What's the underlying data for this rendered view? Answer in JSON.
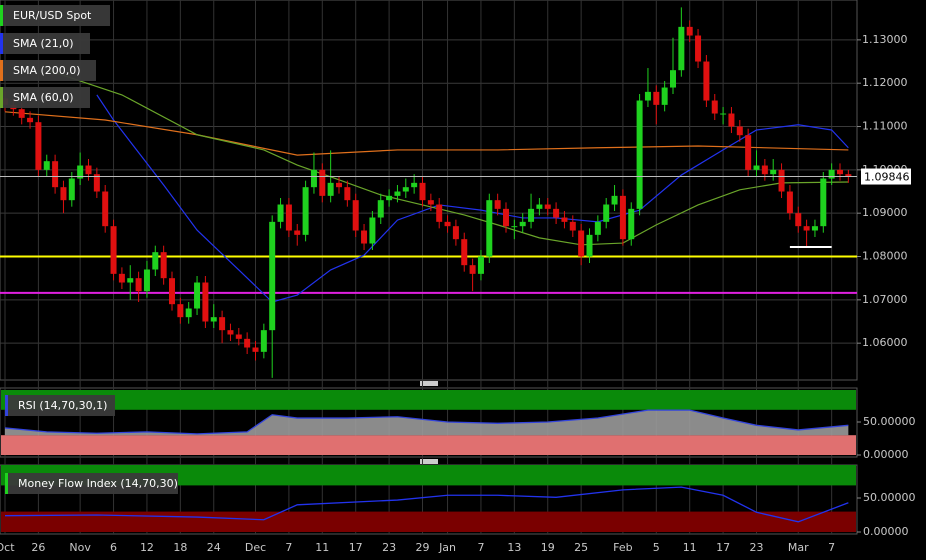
{
  "chart_data": {
    "type": "candlestick",
    "title": "EUR/USD Spot",
    "up_color": "#1fd21f",
    "down_color": "#e01010",
    "ylim": [
      1.0515,
      1.1392
    ],
    "yticks": [
      {
        "value": 1.13,
        "label": "1.13000"
      },
      {
        "value": 1.12,
        "label": "1.12000"
      },
      {
        "value": 1.11,
        "label": "1.11000"
      },
      {
        "value": 1.1,
        "label": "1.10000"
      },
      {
        "value": 1.09,
        "label": "1.09000"
      },
      {
        "value": 1.08,
        "label": "1.08000"
      },
      {
        "value": 1.07,
        "label": "1.07000"
      },
      {
        "value": 1.06,
        "label": "1.06000"
      }
    ],
    "grid": true,
    "xlabels": [
      {
        "index": 0,
        "label": "Oct"
      },
      {
        "index": 4,
        "label": "26"
      },
      {
        "index": 9,
        "label": "Nov"
      },
      {
        "index": 13,
        "label": "6"
      },
      {
        "index": 17,
        "label": "12"
      },
      {
        "index": 21,
        "label": "18"
      },
      {
        "index": 25,
        "label": "24"
      },
      {
        "index": 30,
        "label": "Dec"
      },
      {
        "index": 34,
        "label": "7"
      },
      {
        "index": 38,
        "label": "11"
      },
      {
        "index": 42,
        "label": "17"
      },
      {
        "index": 46,
        "label": "23"
      },
      {
        "index": 50,
        "label": "29"
      },
      {
        "index": 53,
        "label": "Jan"
      },
      {
        "index": 57,
        "label": "7"
      },
      {
        "index": 61,
        "label": "13"
      },
      {
        "index": 65,
        "label": "19"
      },
      {
        "index": 69,
        "label": "25"
      },
      {
        "index": 74,
        "label": "Feb"
      },
      {
        "index": 78,
        "label": "5"
      },
      {
        "index": 82,
        "label": "11"
      },
      {
        "index": 86,
        "label": "17"
      },
      {
        "index": 90,
        "label": "23"
      },
      {
        "index": 95,
        "label": "Mar"
      },
      {
        "index": 99,
        "label": "7"
      }
    ],
    "candles": [
      [
        1.1165,
        1.118,
        1.1135,
        1.115
      ],
      [
        1.115,
        1.1165,
        1.1125,
        1.114
      ],
      [
        1.114,
        1.1155,
        1.1105,
        1.112
      ],
      [
        1.112,
        1.1135,
        1.1095,
        1.111
      ],
      [
        1.111,
        1.1125,
        1.0985,
        1.1
      ],
      [
        1.1,
        1.1035,
        1.0985,
        1.102
      ],
      [
        1.102,
        1.1035,
        1.0945,
        1.096
      ],
      [
        1.096,
        1.0975,
        1.09,
        1.093
      ],
      [
        1.093,
        1.0995,
        1.0915,
        1.098
      ],
      [
        1.098,
        1.104,
        1.0965,
        1.101
      ],
      [
        1.101,
        1.1025,
        1.0975,
        1.099
      ],
      [
        1.099,
        1.1005,
        1.0935,
        1.095
      ],
      [
        1.095,
        1.0965,
        1.0855,
        1.087
      ],
      [
        1.087,
        1.0885,
        1.0745,
        1.076
      ],
      [
        1.076,
        1.0775,
        1.0725,
        1.074
      ],
      [
        1.074,
        1.078,
        1.07,
        1.075
      ],
      [
        1.075,
        1.0765,
        1.0695,
        1.072
      ],
      [
        1.072,
        1.079,
        1.0705,
        1.077
      ],
      [
        1.077,
        1.0825,
        1.0755,
        1.081
      ],
      [
        1.081,
        1.0825,
        1.0735,
        1.075
      ],
      [
        1.075,
        1.0765,
        1.0675,
        1.069
      ],
      [
        1.069,
        1.0705,
        1.0645,
        1.066
      ],
      [
        1.066,
        1.0695,
        1.0645,
        1.068
      ],
      [
        1.068,
        1.0755,
        1.0665,
        1.074
      ],
      [
        1.074,
        1.0755,
        1.0635,
        1.065
      ],
      [
        1.065,
        1.069,
        1.0635,
        1.066
      ],
      [
        1.066,
        1.0675,
        1.06,
        1.063
      ],
      [
        1.063,
        1.0645,
        1.0605,
        1.062
      ],
      [
        1.062,
        1.0635,
        1.0595,
        1.061
      ],
      [
        1.061,
        1.0625,
        1.0575,
        1.059
      ],
      [
        1.059,
        1.0605,
        1.056,
        1.058
      ],
      [
        1.058,
        1.0645,
        1.0565,
        1.063
      ],
      [
        1.063,
        1.0895,
        1.052,
        1.088
      ],
      [
        1.088,
        1.0935,
        1.0865,
        1.092
      ],
      [
        1.092,
        1.0935,
        1.0845,
        1.086
      ],
      [
        1.086,
        1.0875,
        1.0825,
        1.085
      ],
      [
        1.085,
        1.0975,
        1.0835,
        1.096
      ],
      [
        1.096,
        1.104,
        1.0945,
        1.1
      ],
      [
        1.1,
        1.1015,
        1.0925,
        1.094
      ],
      [
        1.094,
        1.1045,
        1.0925,
        1.097
      ],
      [
        1.097,
        1.0985,
        1.0945,
        1.096
      ],
      [
        1.096,
        1.0975,
        1.0915,
        1.093
      ],
      [
        1.093,
        1.0945,
        1.0845,
        1.086
      ],
      [
        1.086,
        1.0875,
        1.0815,
        1.083
      ],
      [
        1.083,
        1.0905,
        1.0815,
        1.089
      ],
      [
        1.089,
        1.0945,
        1.0875,
        1.093
      ],
      [
        1.093,
        1.0955,
        1.0915,
        1.094
      ],
      [
        1.094,
        1.0965,
        1.0925,
        1.095
      ],
      [
        1.095,
        1.098,
        1.0935,
        1.096
      ],
      [
        1.096,
        1.099,
        1.0945,
        1.097
      ],
      [
        1.097,
        1.0985,
        1.0915,
        1.093
      ],
      [
        1.093,
        1.0945,
        1.0905,
        1.092
      ],
      [
        1.092,
        1.0935,
        1.0865,
        1.088
      ],
      [
        1.088,
        1.0895,
        1.0855,
        1.087
      ],
      [
        1.087,
        1.0885,
        1.0825,
        1.084
      ],
      [
        1.084,
        1.0855,
        1.0765,
        1.078
      ],
      [
        1.078,
        1.0795,
        1.072,
        1.076
      ],
      [
        1.076,
        1.0815,
        1.0745,
        1.08
      ],
      [
        1.08,
        1.0945,
        1.0785,
        1.093
      ],
      [
        1.093,
        1.0945,
        1.0895,
        1.091
      ],
      [
        1.091,
        1.0925,
        1.0855,
        1.087
      ],
      [
        1.087,
        1.0885,
        1.084,
        1.087
      ],
      [
        1.087,
        1.09,
        1.0855,
        1.088
      ],
      [
        1.088,
        1.0945,
        1.0865,
        1.091
      ],
      [
        1.091,
        1.0935,
        1.0895,
        1.092
      ],
      [
        1.092,
        1.0935,
        1.0895,
        1.091
      ],
      [
        1.091,
        1.0925,
        1.0875,
        1.089
      ],
      [
        1.089,
        1.0905,
        1.0865,
        1.088
      ],
      [
        1.088,
        1.0895,
        1.0845,
        1.086
      ],
      [
        1.086,
        1.0875,
        1.078,
        1.08
      ],
      [
        1.08,
        1.0865,
        1.0785,
        1.085
      ],
      [
        1.085,
        1.0895,
        1.0835,
        1.088
      ],
      [
        1.088,
        1.0935,
        1.0865,
        1.092
      ],
      [
        1.092,
        1.0965,
        1.0905,
        1.094
      ],
      [
        1.094,
        1.0955,
        1.0825,
        1.084
      ],
      [
        1.084,
        1.0925,
        1.0825,
        1.091
      ],
      [
        1.091,
        1.1175,
        1.0895,
        1.116
      ],
      [
        1.116,
        1.1235,
        1.1145,
        1.118
      ],
      [
        1.118,
        1.1195,
        1.1105,
        1.115
      ],
      [
        1.115,
        1.1205,
        1.1135,
        1.119
      ],
      [
        1.119,
        1.1305,
        1.1175,
        1.123
      ],
      [
        1.123,
        1.1375,
        1.1215,
        1.133
      ],
      [
        1.133,
        1.1345,
        1.1295,
        1.131
      ],
      [
        1.131,
        1.1325,
        1.1235,
        1.125
      ],
      [
        1.125,
        1.1265,
        1.1145,
        1.116
      ],
      [
        1.116,
        1.1175,
        1.1115,
        1.113
      ],
      [
        1.113,
        1.1145,
        1.1105,
        1.113
      ],
      [
        1.113,
        1.1145,
        1.1085,
        1.11
      ],
      [
        1.11,
        1.1115,
        1.1065,
        1.108
      ],
      [
        1.108,
        1.1095,
        1.0985,
        1.1
      ],
      [
        1.1,
        1.1045,
        1.0985,
        1.101
      ],
      [
        1.101,
        1.1025,
        1.0975,
        1.099
      ],
      [
        1.099,
        1.1025,
        1.0975,
        1.1
      ],
      [
        1.1,
        1.1015,
        1.0935,
        1.095
      ],
      [
        1.095,
        1.0965,
        1.0885,
        1.09
      ],
      [
        1.09,
        1.0915,
        1.0855,
        1.087
      ],
      [
        1.087,
        1.0885,
        1.082,
        1.086
      ],
      [
        1.086,
        1.0885,
        1.0845,
        1.087
      ],
      [
        1.087,
        1.0995,
        1.0855,
        1.098
      ],
      [
        1.098,
        1.1015,
        1.0965,
        1.1
      ],
      [
        1.1,
        1.1015,
        1.0975,
        1.099
      ],
      [
        1.099,
        1.1,
        1.097,
        1.0985
      ]
    ],
    "overlays": [
      {
        "name": "SMA (21,0)",
        "color": "#2233ee",
        "x": [
          11,
          13,
          19,
          23,
          28,
          32,
          35,
          39,
          43,
          47,
          52,
          57,
          62,
          66,
          71,
          76,
          81,
          86,
          90,
          95,
          99,
          101
        ],
        "values": [
          1.1173,
          1.1115,
          1.0965,
          1.0861,
          1.0769,
          1.0695,
          1.0711,
          1.0769,
          1.0803,
          1.0884,
          1.0919,
          1.0907,
          1.0889,
          1.0889,
          1.088,
          1.0907,
          1.0988,
          1.1046,
          1.1092,
          1.1104,
          1.1092,
          1.1051
        ]
      },
      {
        "name": "SMA (200,0)",
        "color": "#e0701c",
        "x": [
          0,
          12,
          23,
          35,
          47,
          59,
          71,
          83,
          101
        ],
        "values": [
          1.1134,
          1.1115,
          1.1081,
          1.1034,
          1.1046,
          1.1046,
          1.1051,
          1.1055,
          1.1046
        ]
      },
      {
        "name": "SMA (60,0)",
        "color": "#6aa52a",
        "x": [
          5,
          14,
          23,
          31,
          35,
          40,
          45,
          50,
          55,
          59,
          64,
          69,
          74,
          78,
          83,
          88,
          93,
          101
        ],
        "values": [
          1.1231,
          1.1173,
          1.1081,
          1.1046,
          1.1011,
          1.0977,
          1.0942,
          1.0919,
          1.0896,
          1.0873,
          1.0843,
          1.0827,
          1.0831,
          1.0873,
          1.0919,
          1.0954,
          1.097,
          1.0972
        ]
      }
    ],
    "hlines": [
      {
        "value": 1.08,
        "color": "#ffff00"
      },
      {
        "value": 1.0716,
        "color": "#e020e0"
      }
    ],
    "segments": [
      {
        "value": 1.0822,
        "color": "#ffffff",
        "x": [
          94,
          99
        ]
      }
    ],
    "last_price": {
      "value": 1.09846,
      "label": "1.09846"
    },
    "indicators": [
      {
        "name": "RSI (14,70,30,1)",
        "color": "#3344dd",
        "ylim": [
          0,
          100
        ],
        "yticks": [
          {
            "value": 50,
            "label": "50.00000"
          },
          {
            "value": 0,
            "label": "0.00000"
          }
        ],
        "upper": 70,
        "lower": 30,
        "x": [
          0,
          5,
          11,
          17,
          23,
          29,
          32,
          35,
          41,
          47,
          53,
          59,
          65,
          71,
          77,
          82,
          86,
          90,
          95,
          101
        ],
        "values": [
          41,
          35,
          33,
          35,
          32,
          35,
          61,
          56,
          56,
          58,
          50,
          48,
          50,
          56,
          68,
          68,
          56,
          45,
          38,
          45
        ]
      },
      {
        "name": "Money Flow Index (14,70,30)",
        "color": "#2233ee",
        "ylim": [
          0,
          100
        ],
        "yticks": [
          {
            "value": 50,
            "label": "50.00000"
          },
          {
            "value": 0,
            "label": "0.00000"
          }
        ],
        "upper": 70,
        "lower": 30,
        "x": [
          0,
          11,
          23,
          31,
          35,
          47,
          53,
          59,
          66,
          74,
          81,
          86,
          90,
          95,
          101
        ],
        "values": [
          24,
          25,
          22,
          18,
          40,
          47,
          54,
          54,
          51,
          62,
          66,
          54,
          29,
          15,
          43
        ]
      }
    ]
  }
}
